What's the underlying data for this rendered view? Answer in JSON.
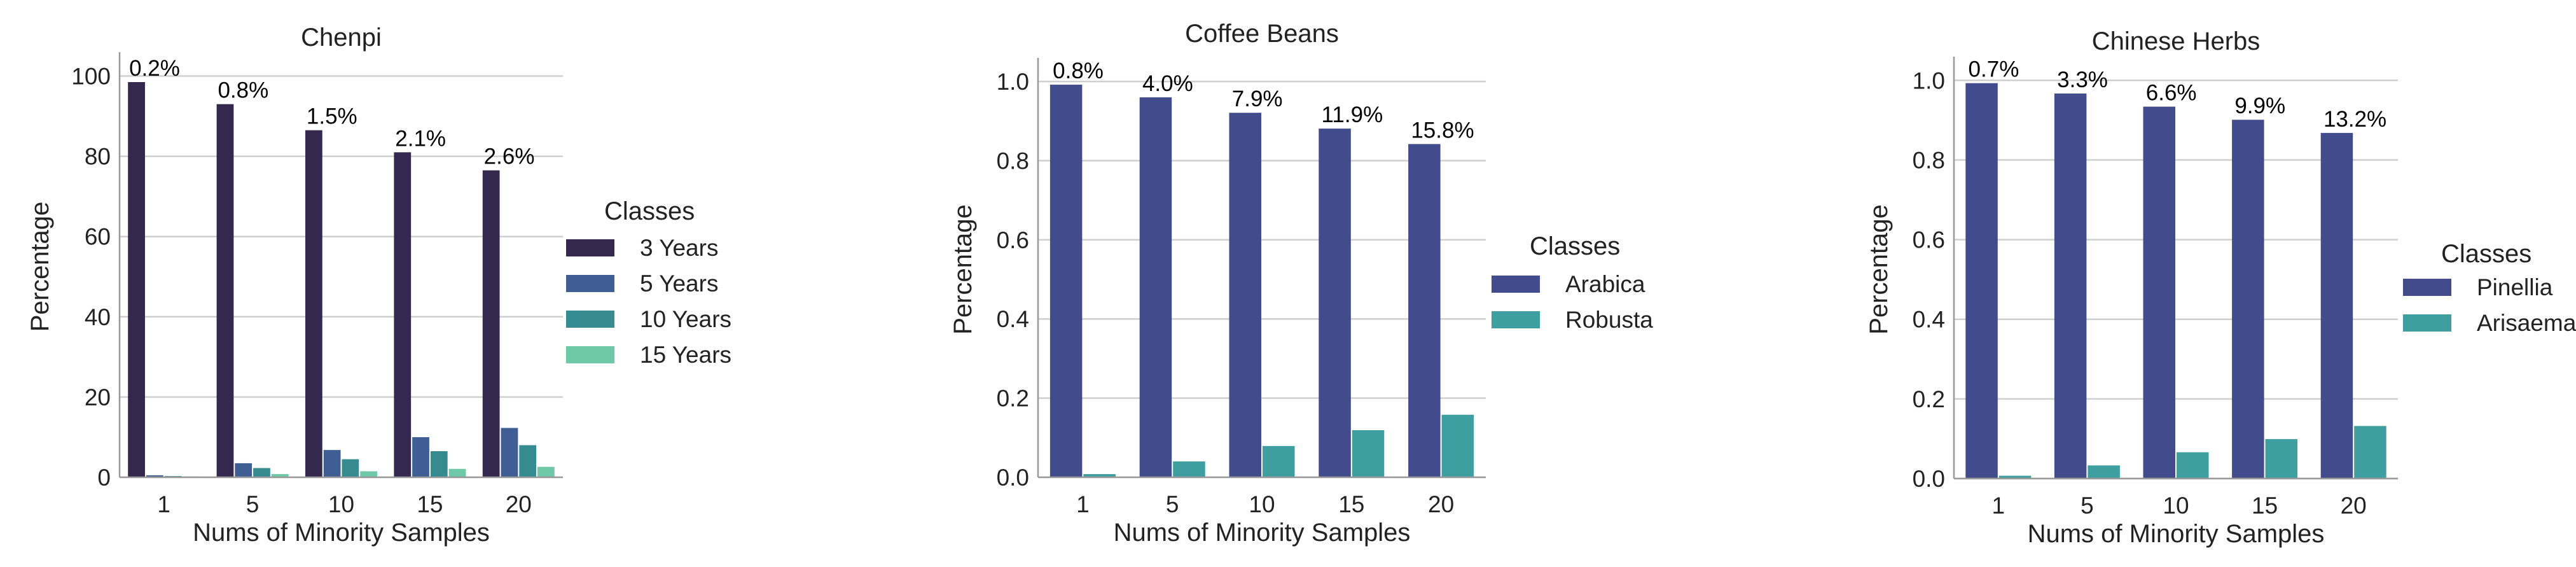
{
  "chart_data": [
    {
      "type": "bar",
      "title": "Chenpi",
      "xlabel": "Nums of Minority Samples",
      "ylabel": "Percentage",
      "categories": [
        "1",
        "5",
        "10",
        "15",
        "20"
      ],
      "ylim": [
        0,
        105
      ],
      "yticks": [
        0,
        20,
        40,
        60,
        80,
        100
      ],
      "ytick_labels": [
        "0",
        "20",
        "40",
        "60",
        "80",
        "100"
      ],
      "legend_title": "Classes",
      "series": [
        {
          "name": "3 Years",
          "color": "#35284f",
          "values": [
            98.5,
            93.0,
            86.5,
            81.0,
            76.5
          ]
        },
        {
          "name": "5 Years",
          "color": "#3f5f94",
          "values": [
            0.5,
            3.5,
            6.8,
            10.0,
            12.3
          ]
        },
        {
          "name": "10 Years",
          "color": "#358b8f",
          "values": [
            0.3,
            2.3,
            4.5,
            6.5,
            8.0
          ]
        },
        {
          "name": "15 Years",
          "color": "#6fc8a8",
          "values": [
            0.2,
            0.8,
            1.5,
            2.1,
            2.6
          ]
        }
      ],
      "annotations": [
        "0.2%",
        "0.8%",
        "1.5%",
        "2.1%",
        "2.6%"
      ]
    },
    {
      "type": "bar",
      "title": "Coffee Beans",
      "xlabel": "Nums of Minority Samples",
      "ylabel": "Percentage",
      "categories": [
        "1",
        "5",
        "10",
        "15",
        "20"
      ],
      "ylim": [
        0,
        1.05
      ],
      "yticks": [
        0,
        0.2,
        0.4,
        0.6,
        0.8,
        1.0
      ],
      "ytick_labels": [
        "0.0",
        "0.2",
        "0.4",
        "0.6",
        "0.8",
        "1.0"
      ],
      "legend_title": "Classes",
      "series": [
        {
          "name": "Arabica",
          "color": "#424c8c",
          "values": [
            0.992,
            0.96,
            0.921,
            0.881,
            0.842
          ]
        },
        {
          "name": "Robusta",
          "color": "#3e9ea0",
          "values": [
            0.008,
            0.04,
            0.079,
            0.119,
            0.158
          ]
        }
      ],
      "annotations": [
        "0.8%",
        "4.0%",
        "7.9%",
        "11.9%",
        "15.8%"
      ]
    },
    {
      "type": "bar",
      "title": "Chinese Herbs",
      "xlabel": "Nums of Minority Samples",
      "ylabel": "Percentage",
      "categories": [
        "1",
        "5",
        "10",
        "15",
        "20"
      ],
      "ylim": [
        0,
        1.05
      ],
      "yticks": [
        0,
        0.2,
        0.4,
        0.6,
        0.8,
        1.0
      ],
      "ytick_labels": [
        "0.0",
        "0.2",
        "0.4",
        "0.6",
        "0.8",
        "1.0"
      ],
      "legend_title": "Classes",
      "series": [
        {
          "name": "Pinellia",
          "color": "#424c8c",
          "values": [
            0.993,
            0.967,
            0.934,
            0.901,
            0.868
          ]
        },
        {
          "name": "Arisaema",
          "color": "#3e9ea0",
          "values": [
            0.007,
            0.033,
            0.066,
            0.099,
            0.132
          ]
        }
      ],
      "annotations": [
        "0.7%",
        "3.3%",
        "6.6%",
        "9.9%",
        "13.2%"
      ]
    }
  ]
}
